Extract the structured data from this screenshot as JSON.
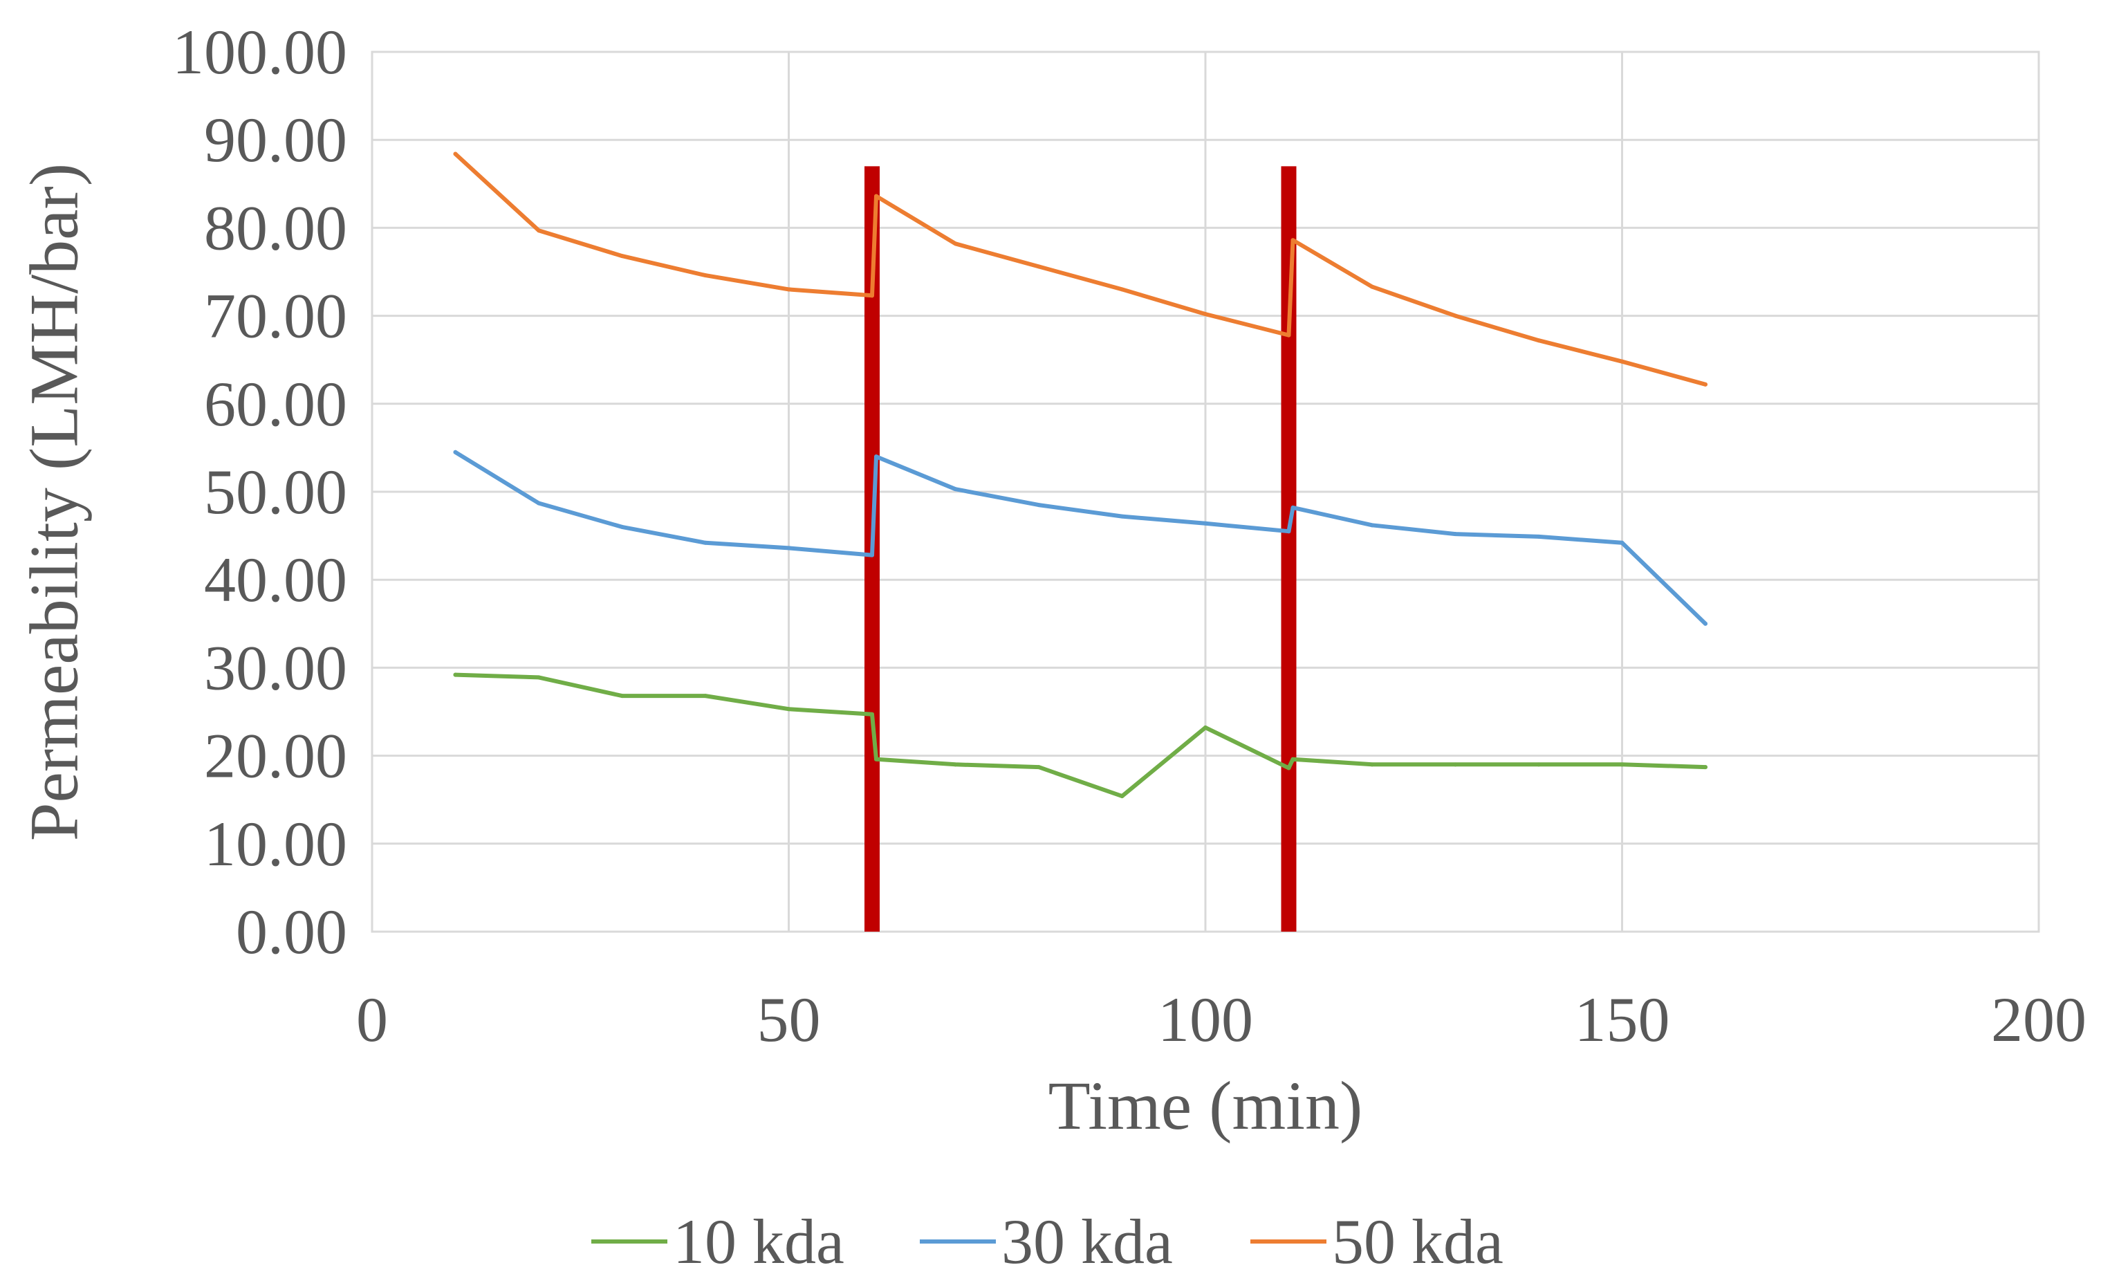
{
  "chart_data": {
    "type": "line",
    "title": "",
    "xlabel": "Time (min)",
    "ylabel": "Permeability (LMH/bar)",
    "xlim": [
      0,
      200
    ],
    "ylim": [
      0,
      100
    ],
    "x_ticks": [
      0,
      50,
      100,
      150,
      200
    ],
    "x_tick_labels": [
      "0",
      "50",
      "100",
      "150",
      "200"
    ],
    "y_ticks": [
      0,
      10,
      20,
      30,
      40,
      50,
      60,
      70,
      80,
      90,
      100
    ],
    "y_tick_labels": [
      "0.00",
      "10.00",
      "20.00",
      "30.00",
      "40.00",
      "50.00",
      "60.00",
      "70.00",
      "80.00",
      "90.00",
      "100.00"
    ],
    "grid": true,
    "legend_position": "bottom",
    "series": [
      {
        "name": "10 kda",
        "color": "#70ad47",
        "x": [
          10,
          20,
          30,
          40,
          50,
          60,
          60.5,
          70,
          80,
          90,
          100,
          110,
          110.5,
          120,
          130,
          140,
          150,
          160
        ],
        "y": [
          29.2,
          28.9,
          26.8,
          26.8,
          25.3,
          24.7,
          19.6,
          19.0,
          18.7,
          15.4,
          23.2,
          18.6,
          19.6,
          19.0,
          19.0,
          19.0,
          19.0,
          18.7
        ]
      },
      {
        "name": "30 kda",
        "color": "#5b9bd5",
        "x": [
          10,
          20,
          30,
          40,
          50,
          60,
          60.5,
          70,
          80,
          90,
          100,
          110,
          110.5,
          120,
          130,
          140,
          150,
          160
        ],
        "y": [
          54.5,
          48.7,
          46.0,
          44.2,
          43.6,
          42.8,
          54.0,
          50.3,
          48.5,
          47.2,
          46.4,
          45.5,
          48.2,
          46.2,
          45.2,
          44.9,
          44.2,
          35.0
        ]
      },
      {
        "name": "50 kda",
        "color": "#ed7d31",
        "x": [
          10,
          20,
          30,
          40,
          50,
          60,
          60.5,
          70,
          80,
          90,
          100,
          110,
          110.5,
          120,
          130,
          140,
          150,
          160
        ],
        "y": [
          88.4,
          79.7,
          76.8,
          74.6,
          73.0,
          72.3,
          83.6,
          78.2,
          75.6,
          73.0,
          70.2,
          67.8,
          78.6,
          73.3,
          70.0,
          67.2,
          64.8,
          62.2
        ]
      }
    ],
    "markers": [
      {
        "name": "vertical-marker",
        "color": "#c00000",
        "x": 60,
        "y_range": [
          0,
          87
        ]
      },
      {
        "name": "vertical-marker",
        "color": "#c00000",
        "x": 110,
        "y_range": [
          0,
          87
        ]
      }
    ]
  }
}
